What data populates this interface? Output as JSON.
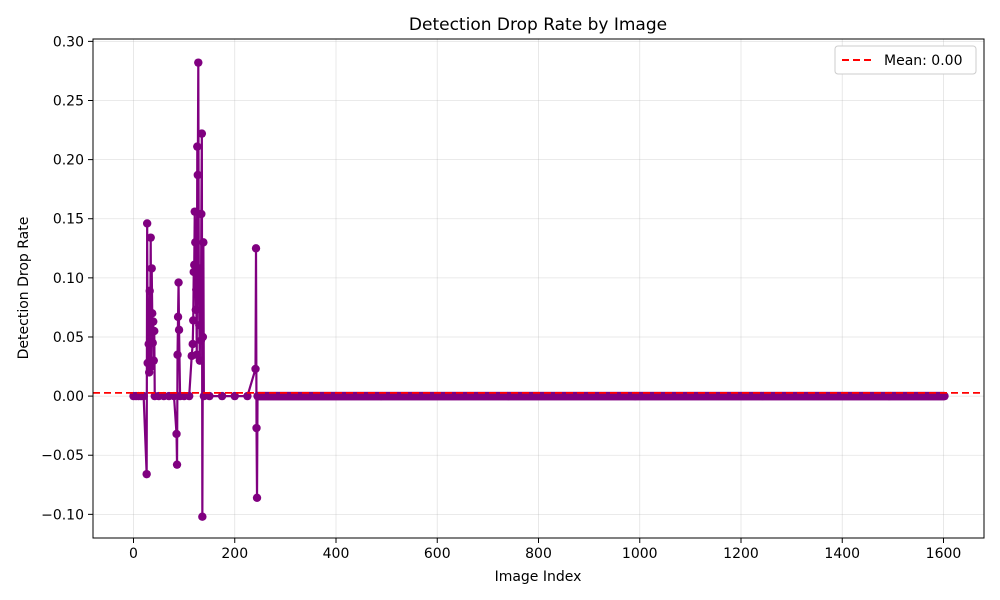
{
  "chart_data": {
    "type": "line",
    "title": "Detection Drop Rate by Image",
    "xlabel": "Image Index",
    "ylabel": "Detection Drop Rate",
    "xlim": [
      -80,
      1680
    ],
    "ylim": [
      -0.12,
      0.302
    ],
    "xticks": [
      0,
      200,
      400,
      600,
      800,
      1000,
      1200,
      1400,
      1600
    ],
    "xtick_labels": [
      "0",
      "200",
      "400",
      "600",
      "800",
      "1000",
      "1200",
      "1400",
      "1600"
    ],
    "yticks": [
      -0.1,
      -0.05,
      0.0,
      0.05,
      0.1,
      0.15,
      0.2,
      0.25,
      0.3
    ],
    "ytick_labels": [
      "−0.10",
      "−0.05",
      "0.00",
      "0.05",
      "0.10",
      "0.15",
      "0.20",
      "0.25",
      "0.30"
    ],
    "grid": true,
    "legend_position": "top-right",
    "series": [
      {
        "color": "#800080",
        "marker": "circle",
        "points": [
          [
            0,
            0
          ],
          [
            5,
            0
          ],
          [
            10,
            0
          ],
          [
            15,
            0
          ],
          [
            20,
            0
          ],
          [
            26,
            -0.066
          ],
          [
            27,
            0.146
          ],
          [
            28,
            0.028
          ],
          [
            30,
            0.044
          ],
          [
            31,
            0.02
          ],
          [
            32,
            0.089
          ],
          [
            33,
            0.06
          ],
          [
            34,
            0.134
          ],
          [
            35,
            0.025
          ],
          [
            36,
            0.108
          ],
          [
            37,
            0.07
          ],
          [
            38,
            0.045
          ],
          [
            39,
            0.063
          ],
          [
            40,
            0.03
          ],
          [
            41,
            0.055
          ],
          [
            42,
            0
          ],
          [
            50,
            0
          ],
          [
            60,
            0
          ],
          [
            70,
            0
          ],
          [
            80,
            0
          ],
          [
            85,
            -0.032
          ],
          [
            86,
            -0.058
          ],
          [
            87,
            0.035
          ],
          [
            88,
            0.067
          ],
          [
            89,
            0.096
          ],
          [
            90,
            0.056
          ],
          [
            92,
            0
          ],
          [
            100,
            0
          ],
          [
            110,
            0
          ],
          [
            115,
            0.034
          ],
          [
            117,
            0.044
          ],
          [
            118,
            0.064
          ],
          [
            119,
            0.105
          ],
          [
            120,
            0.111
          ],
          [
            121,
            0.156
          ],
          [
            122,
            0.13
          ],
          [
            123,
            0.073
          ],
          [
            124,
            0.09
          ],
          [
            125,
            0.035
          ],
          [
            126,
            0.211
          ],
          [
            127,
            0.187
          ],
          [
            128,
            0.282
          ],
          [
            129,
            0.105
          ],
          [
            130,
            0.06
          ],
          [
            131,
            0.03
          ],
          [
            132,
            0.108
          ],
          [
            133,
            0.047
          ],
          [
            134,
            0.154
          ],
          [
            135,
            0.222
          ],
          [
            136,
            -0.102
          ],
          [
            137,
            0.05
          ],
          [
            138,
            0.13
          ],
          [
            139,
            0
          ],
          [
            150,
            0
          ],
          [
            175,
            0
          ],
          [
            200,
            0
          ],
          [
            225,
            0
          ],
          [
            241,
            0.023
          ],
          [
            242,
            0.125
          ],
          [
            243,
            -0.027
          ],
          [
            244,
            -0.086
          ],
          [
            245,
            0
          ]
        ],
        "trailing_zero_range": [
          245,
          1602
        ]
      }
    ],
    "mean_line": {
      "value": 0.0027,
      "label": "Mean: 0.00",
      "color": "#ff0000",
      "style": "dashed"
    }
  }
}
